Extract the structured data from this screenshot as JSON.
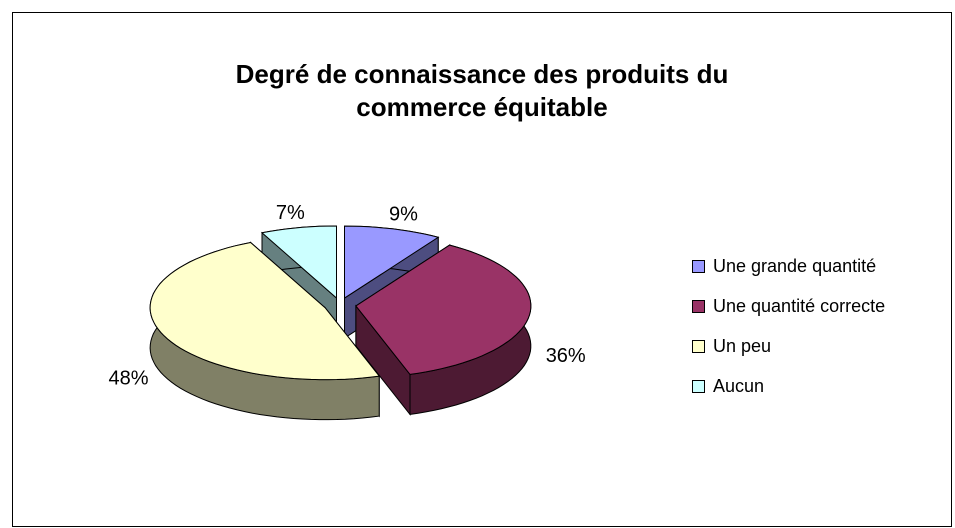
{
  "chart_data": {
    "type": "pie",
    "title": [
      "Degré de connaissance des produits du",
      "commerce équitable"
    ],
    "categories": [
      "Une grande quantité",
      "Une quantité correcte",
      "Un peu",
      "Aucun"
    ],
    "values": [
      9,
      36,
      48,
      7
    ],
    "value_labels": [
      "9%",
      "36%",
      "48%",
      "7%"
    ],
    "colors": [
      "#9999ff",
      "#993366",
      "#ffffcc",
      "#ccffff"
    ],
    "legend": "right"
  }
}
